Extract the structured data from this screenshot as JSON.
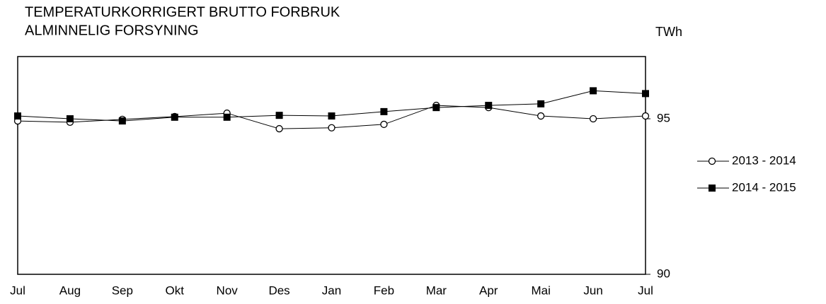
{
  "chart_data": {
    "type": "line",
    "title": "TEMPERATURKORRIGERT BRUTTO FORBRUK",
    "subtitle": "ALMINNELIG FORSYNING",
    "y_label": "TWh",
    "categories": [
      "Jul",
      "Aug",
      "Sep",
      "Okt",
      "Nov",
      "Des",
      "Jan",
      "Feb",
      "Mar",
      "Apr",
      "Mai",
      "Jun",
      "Jul"
    ],
    "series": [
      {
        "name": "2013 - 2014",
        "color": "#000000",
        "marker": "open-circle",
        "values": [
          94.93,
          94.89,
          94.98,
          95.07,
          95.18,
          94.68,
          94.71,
          94.82,
          95.43,
          95.36,
          95.09,
          95.0,
          95.09
        ]
      },
      {
        "name": "2014 - 2015",
        "color": "#000000",
        "marker": "filled-square",
        "values": [
          95.09,
          95.0,
          94.93,
          95.05,
          95.05,
          95.11,
          95.09,
          95.23,
          95.36,
          95.43,
          95.48,
          95.9,
          95.81
        ]
      }
    ],
    "ylim": [
      90,
      97
    ],
    "yticks": [
      90,
      95
    ],
    "y_axis_side": "right",
    "grid": false,
    "legend": "right"
  }
}
